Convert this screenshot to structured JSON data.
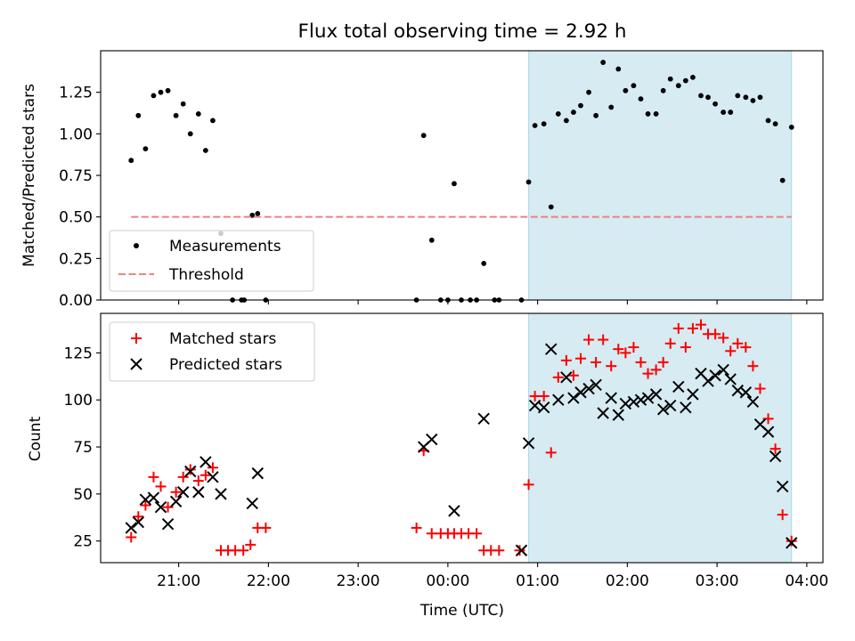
{
  "figure": {
    "title": "Flux total observing time = 2.92 h"
  },
  "chart_data": [
    {
      "type": "scatter",
      "panel": "top",
      "ylabel": "Matched/Predicted stars",
      "xlabel": "",
      "x_unit": "hours UTC (values past 24 wrap to next day)",
      "xlim": [
        20.13,
        28.18
      ],
      "ylim": [
        0,
        1.5
      ],
      "yticks": [
        0.0,
        0.25,
        0.5,
        0.75,
        1.0,
        1.25
      ],
      "ytick_labels": [
        "0.00",
        "0.25",
        "0.50",
        "0.75",
        "1.00",
        "1.25"
      ],
      "xticks": [
        21,
        22,
        23,
        24,
        25,
        26,
        27,
        28
      ],
      "xtick_labels": [
        "",
        "",
        "",
        "",
        "",
        "",
        "",
        ""
      ],
      "shaded_span": {
        "x0": 24.9,
        "x1": 27.83,
        "color": "#add8e6"
      },
      "legend": {
        "placement": "lower-left",
        "entries": [
          "Measurements",
          "Threshold"
        ]
      },
      "series": [
        {
          "name": "Measurements",
          "marker": "dot",
          "color": "#000000",
          "points": [
            [
              20.47,
              0.84
            ],
            [
              20.55,
              1.11
            ],
            [
              20.63,
              0.91
            ],
            [
              20.72,
              1.23
            ],
            [
              20.8,
              1.25
            ],
            [
              20.88,
              1.26
            ],
            [
              20.97,
              1.11
            ],
            [
              21.05,
              1.18
            ],
            [
              21.13,
              1.0
            ],
            [
              21.22,
              1.12
            ],
            [
              21.3,
              0.9
            ],
            [
              21.38,
              1.08
            ],
            [
              21.47,
              0.4
            ],
            [
              21.6,
              0.0
            ],
            [
              21.7,
              0.0
            ],
            [
              21.73,
              0.0
            ],
            [
              21.82,
              0.51
            ],
            [
              21.88,
              0.52
            ],
            [
              21.97,
              0.0
            ],
            [
              23.65,
              0.0
            ],
            [
              23.73,
              0.99
            ],
            [
              23.82,
              0.36
            ],
            [
              23.92,
              0.0
            ],
            [
              24.0,
              0.0
            ],
            [
              24.07,
              0.7
            ],
            [
              24.15,
              0.0
            ],
            [
              24.25,
              0.0
            ],
            [
              24.32,
              0.0
            ],
            [
              24.4,
              0.22
            ],
            [
              24.52,
              0.0
            ],
            [
              24.57,
              0.0
            ],
            [
              24.82,
              0.0
            ],
            [
              24.9,
              0.71
            ],
            [
              24.97,
              1.05
            ],
            [
              25.07,
              1.06
            ],
            [
              25.15,
              0.56
            ],
            [
              25.23,
              1.12
            ],
            [
              25.32,
              1.08
            ],
            [
              25.4,
              1.13
            ],
            [
              25.48,
              1.17
            ],
            [
              25.57,
              1.25
            ],
            [
              25.65,
              1.11
            ],
            [
              25.73,
              1.43
            ],
            [
              25.82,
              1.16
            ],
            [
              25.9,
              1.39
            ],
            [
              25.98,
              1.26
            ],
            [
              26.07,
              1.29
            ],
            [
              26.15,
              1.21
            ],
            [
              26.23,
              1.12
            ],
            [
              26.32,
              1.12
            ],
            [
              26.4,
              1.26
            ],
            [
              26.48,
              1.33
            ],
            [
              26.57,
              1.29
            ],
            [
              26.65,
              1.32
            ],
            [
              26.73,
              1.34
            ],
            [
              26.82,
              1.23
            ],
            [
              26.9,
              1.22
            ],
            [
              26.98,
              1.18
            ],
            [
              27.07,
              1.13
            ],
            [
              27.15,
              1.13
            ],
            [
              27.23,
              1.23
            ],
            [
              27.32,
              1.22
            ],
            [
              27.4,
              1.2
            ],
            [
              27.48,
              1.22
            ],
            [
              27.57,
              1.08
            ],
            [
              27.65,
              1.06
            ],
            [
              27.73,
              0.72
            ],
            [
              27.83,
              1.04
            ]
          ]
        },
        {
          "name": "Threshold",
          "style": "dashed",
          "color": "#f08080",
          "points": [
            [
              20.47,
              0.5
            ],
            [
              27.83,
              0.5
            ]
          ]
        }
      ]
    },
    {
      "type": "scatter",
      "panel": "bottom",
      "ylabel": "Count",
      "xlabel": "Time (UTC)",
      "x_unit": "hours UTC (values past 24 wrap to next day)",
      "xlim": [
        20.13,
        28.18
      ],
      "ylim": [
        13.5,
        146
      ],
      "yticks": [
        25,
        50,
        75,
        100,
        125
      ],
      "ytick_labels": [
        "25",
        "50",
        "75",
        "100",
        "125"
      ],
      "xticks": [
        21,
        22,
        23,
        24,
        25,
        26,
        27,
        28
      ],
      "xtick_labels": [
        "21:00",
        "22:00",
        "23:00",
        "00:00",
        "01:00",
        "02:00",
        "03:00",
        "04:00"
      ],
      "shaded_span": {
        "x0": 24.9,
        "x1": 27.83,
        "color": "#add8e6"
      },
      "legend": {
        "placement": "top-left",
        "entries": [
          "Matched stars",
          "Predicted stars"
        ]
      },
      "series": [
        {
          "name": "Matched stars",
          "marker": "plus",
          "color": "#ff0000",
          "points": [
            [
              20.47,
              27
            ],
            [
              20.55,
              38
            ],
            [
              20.63,
              44
            ],
            [
              20.72,
              59
            ],
            [
              20.8,
              54
            ],
            [
              20.88,
              43
            ],
            [
              20.97,
              51
            ],
            [
              21.05,
              59
            ],
            [
              21.13,
              63
            ],
            [
              21.22,
              57
            ],
            [
              21.3,
              60
            ],
            [
              21.38,
              64
            ],
            [
              21.47,
              20
            ],
            [
              21.55,
              20
            ],
            [
              21.63,
              20
            ],
            [
              21.72,
              20
            ],
            [
              21.8,
              23
            ],
            [
              21.88,
              32
            ],
            [
              21.97,
              32
            ],
            [
              23.65,
              32
            ],
            [
              23.73,
              73
            ],
            [
              23.82,
              29
            ],
            [
              23.92,
              29
            ],
            [
              24.0,
              29
            ],
            [
              24.07,
              29
            ],
            [
              24.15,
              29
            ],
            [
              24.23,
              29
            ],
            [
              24.32,
              29
            ],
            [
              24.4,
              20
            ],
            [
              24.48,
              20
            ],
            [
              24.57,
              20
            ],
            [
              24.8,
              20
            ],
            [
              24.9,
              55
            ],
            [
              24.97,
              102
            ],
            [
              25.07,
              102
            ],
            [
              25.15,
              72
            ],
            [
              25.23,
              112
            ],
            [
              25.32,
              121
            ],
            [
              25.4,
              113
            ],
            [
              25.48,
              122
            ],
            [
              25.57,
              132
            ],
            [
              25.65,
              120
            ],
            [
              25.73,
              132
            ],
            [
              25.82,
              118
            ],
            [
              25.9,
              127
            ],
            [
              25.98,
              125
            ],
            [
              26.07,
              128
            ],
            [
              26.15,
              120
            ],
            [
              26.23,
              114
            ],
            [
              26.32,
              116
            ],
            [
              26.4,
              120
            ],
            [
              26.48,
              130
            ],
            [
              26.57,
              138
            ],
            [
              26.65,
              128
            ],
            [
              26.73,
              138
            ],
            [
              26.82,
              140
            ],
            [
              26.9,
              135
            ],
            [
              26.98,
              135
            ],
            [
              27.07,
              133
            ],
            [
              27.15,
              126
            ],
            [
              27.23,
              130
            ],
            [
              27.32,
              128
            ],
            [
              27.4,
              118
            ],
            [
              27.48,
              106
            ],
            [
              27.57,
              90
            ],
            [
              27.65,
              74
            ],
            [
              27.73,
              39
            ],
            [
              27.83,
              25
            ]
          ]
        },
        {
          "name": "Predicted stars",
          "marker": "x",
          "color": "#000000",
          "points": [
            [
              20.47,
              32
            ],
            [
              20.55,
              35
            ],
            [
              20.63,
              47
            ],
            [
              20.72,
              48
            ],
            [
              20.8,
              43
            ],
            [
              20.88,
              34
            ],
            [
              20.97,
              46
            ],
            [
              21.05,
              51
            ],
            [
              21.13,
              62
            ],
            [
              21.22,
              51
            ],
            [
              21.3,
              67
            ],
            [
              21.38,
              59
            ],
            [
              21.47,
              50
            ],
            [
              21.82,
              45
            ],
            [
              21.88,
              61
            ],
            [
              23.73,
              75
            ],
            [
              23.82,
              79
            ],
            [
              24.07,
              41
            ],
            [
              24.4,
              90
            ],
            [
              24.82,
              20
            ],
            [
              24.9,
              77
            ],
            [
              24.97,
              97
            ],
            [
              25.07,
              96
            ],
            [
              25.15,
              127
            ],
            [
              25.23,
              100
            ],
            [
              25.32,
              112
            ],
            [
              25.4,
              101
            ],
            [
              25.48,
              104
            ],
            [
              25.57,
              106
            ],
            [
              25.65,
              108
            ],
            [
              25.73,
              93
            ],
            [
              25.82,
              101
            ],
            [
              25.9,
              92
            ],
            [
              25.98,
              98
            ],
            [
              26.07,
              99
            ],
            [
              26.15,
              100
            ],
            [
              26.23,
              101
            ],
            [
              26.32,
              103
            ],
            [
              26.4,
              95
            ],
            [
              26.48,
              97
            ],
            [
              26.57,
              107
            ],
            [
              26.65,
              96
            ],
            [
              26.73,
              103
            ],
            [
              26.82,
              114
            ],
            [
              26.9,
              110
            ],
            [
              26.98,
              113
            ],
            [
              27.07,
              116
            ],
            [
              27.15,
              111
            ],
            [
              27.23,
              105
            ],
            [
              27.32,
              104
            ],
            [
              27.4,
              99
            ],
            [
              27.48,
              87
            ],
            [
              27.57,
              83
            ],
            [
              27.65,
              70
            ],
            [
              27.73,
              54
            ],
            [
              27.83,
              24
            ]
          ]
        }
      ]
    }
  ]
}
